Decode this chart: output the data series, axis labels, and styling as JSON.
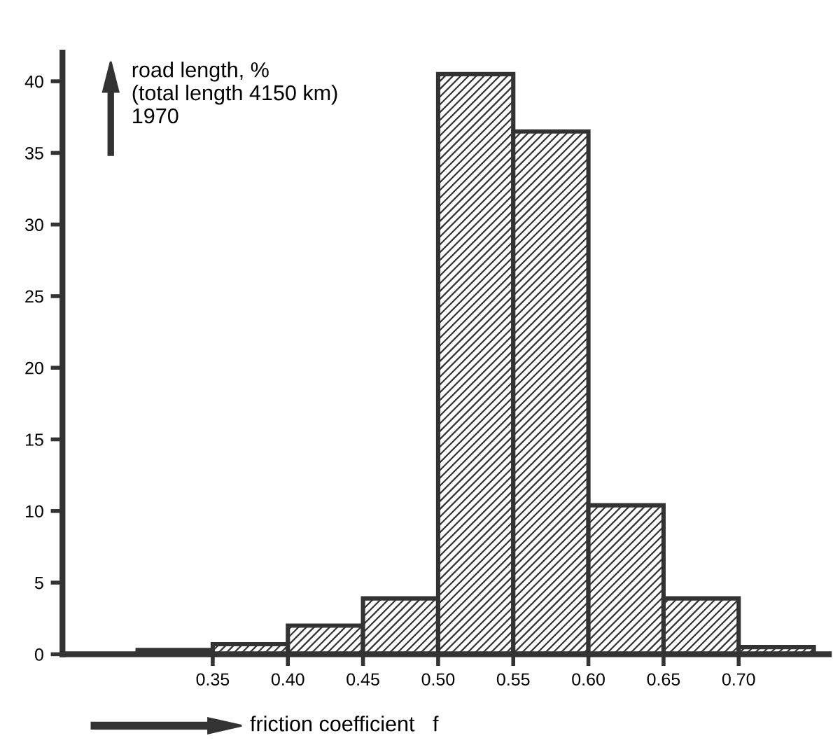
{
  "chart_data": {
    "type": "histogram",
    "ylabel": "road length, %\n(total length 4150 km)\n1970",
    "xlabel": "friction coefficient   f",
    "bins": [
      0.3,
      0.35,
      0.4,
      0.45,
      0.5,
      0.55,
      0.6,
      0.65,
      0.7,
      0.75
    ],
    "values": [
      0.3,
      0.7,
      2,
      3.9,
      40.5,
      36.5,
      10.4,
      3.9,
      0.5
    ],
    "color": "#333333",
    "xlim": [
      0.25,
      0.76
    ],
    "ylim": [
      0,
      42
    ],
    "xticks": [
      {
        "value": 0.35,
        "label": "0.35"
      },
      {
        "value": 0.4,
        "label": "0.40"
      },
      {
        "value": 0.45,
        "label": "0.45"
      },
      {
        "value": 0.5,
        "label": "0.50"
      },
      {
        "value": 0.55,
        "label": "0.55"
      },
      {
        "value": 0.6,
        "label": "0.60"
      },
      {
        "value": 0.65,
        "label": "0.65"
      },
      {
        "value": 0.7,
        "label": "0.70"
      }
    ],
    "yticks": [
      0,
      5,
      10,
      15,
      20,
      25,
      30,
      35,
      40
    ],
    "grid": false
  }
}
